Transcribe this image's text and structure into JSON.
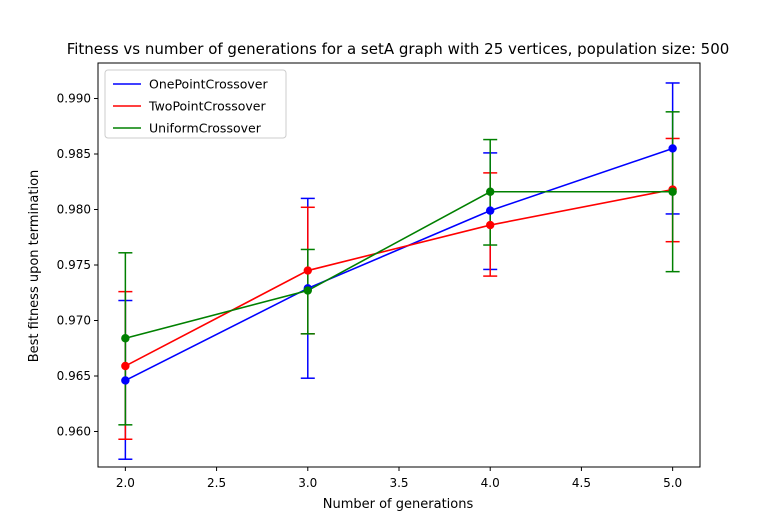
{
  "chart_data": {
    "type": "line",
    "title": "Fitness vs number of generations for a setA graph with 25 vertices, population size: 500",
    "xlabel": "Number of generations",
    "ylabel": "Best fitness upon termination",
    "xlim": [
      1.85,
      5.15
    ],
    "ylim": [
      0.9568,
      0.9932
    ],
    "xticks": [
      2.0,
      2.5,
      3.0,
      3.5,
      4.0,
      4.5,
      5.0
    ],
    "xtick_labels": [
      "2.0",
      "2.5",
      "3.0",
      "3.5",
      "4.0",
      "4.5",
      "5.0"
    ],
    "yticks": [
      0.96,
      0.965,
      0.97,
      0.975,
      0.98,
      0.985,
      0.99
    ],
    "ytick_labels": [
      "0.960",
      "0.965",
      "0.970",
      "0.975",
      "0.980",
      "0.985",
      "0.990"
    ],
    "grid": false,
    "legend_position": "top-left",
    "x": [
      2,
      3,
      4,
      5
    ],
    "series": [
      {
        "name": "OnePointCrossover",
        "color": "#0000ff",
        "values": [
          0.9646,
          0.9729,
          0.9799,
          0.9855
        ],
        "err_low": [
          0.9575,
          0.9648,
          0.9746,
          0.9796
        ],
        "err_high": [
          0.9718,
          0.981,
          0.9851,
          0.9914
        ]
      },
      {
        "name": "TwoPointCrossover",
        "color": "#ff0000",
        "values": [
          0.9659,
          0.9745,
          0.9786,
          0.9818
        ],
        "err_low": [
          0.9593,
          0.9688,
          0.974,
          0.9771
        ],
        "err_high": [
          0.9726,
          0.9802,
          0.9833,
          0.9864
        ]
      },
      {
        "name": "UniformCrossover",
        "color": "#008000",
        "values": [
          0.9684,
          0.9727,
          0.9816,
          0.9816
        ],
        "err_low": [
          0.9606,
          0.9688,
          0.9768,
          0.9744
        ],
        "err_high": [
          0.9761,
          0.9764,
          0.9863,
          0.9888
        ]
      }
    ]
  }
}
